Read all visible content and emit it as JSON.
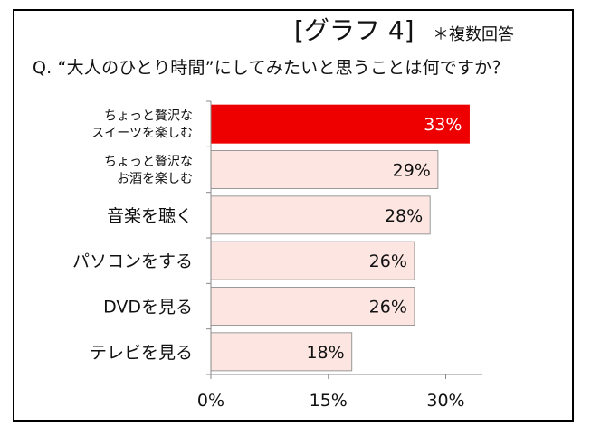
{
  "header": {
    "graph_label": "[グラフ 4]",
    "note": "＊複数回答",
    "question": "Q. “大人のひとり時間”にしてみたいと思うことは何ですか？"
  },
  "chart_data": {
    "type": "bar",
    "orientation": "horizontal",
    "title": "",
    "xlabel": "",
    "ylabel": "",
    "xlim": [
      0,
      36
    ],
    "x_ticks": [
      0,
      15,
      30
    ],
    "x_tick_labels": [
      "0%",
      "15%",
      "30%"
    ],
    "grid": false,
    "categories": [
      [
        "ちょっと贅沢な",
        "スイーツを楽しむ"
      ],
      [
        "ちょっと贅沢な",
        "お酒を楽しむ"
      ],
      [
        "音楽を聴く"
      ],
      [
        "パソコンをする"
      ],
      [
        "DVDを見る"
      ],
      [
        "テレビを見る"
      ]
    ],
    "values": [
      33,
      29,
      28,
      26,
      26,
      18
    ],
    "value_labels": [
      "33%",
      "29%",
      "28%",
      "26%",
      "26%",
      "18%"
    ],
    "colors": {
      "highlight_fill": "#ee0000",
      "highlight_label": "#ffffff",
      "bar_fill": "#fde6e2",
      "bar_stroke": "#999999",
      "bar_label": "#111111",
      "axis": "#888888"
    }
  }
}
